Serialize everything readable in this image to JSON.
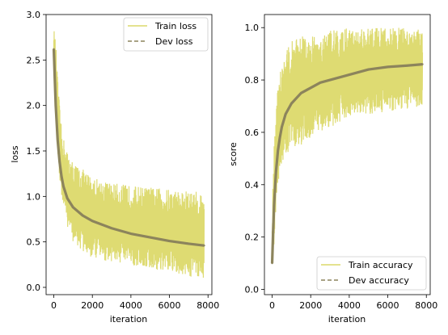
{
  "chart_data": [
    {
      "type": "line",
      "xlabel": "iteration",
      "ylabel": "loss",
      "xlim": [
        -400,
        8200
      ],
      "ylim": [
        -0.08,
        3.0
      ],
      "xticks": [
        0,
        2000,
        4000,
        6000,
        8000
      ],
      "xtick_labels": [
        "0",
        "2000",
        "4000",
        "6000",
        "8000"
      ],
      "yticks": [
        0.0,
        0.5,
        1.0,
        1.5,
        2.0,
        2.5,
        3.0
      ],
      "ytick_labels": [
        "0.0",
        "0.5",
        "1.0",
        "1.5",
        "2.0",
        "2.5",
        "3.0"
      ],
      "grid": false,
      "legend_position": "upper right",
      "series": [
        {
          "name": "Train loss",
          "style": "band",
          "color": "#dcd96a",
          "x": [
            0,
            100,
            200,
            300,
            400,
            600,
            800,
            1000,
            1500,
            2000,
            2500,
            3000,
            4000,
            5000,
            6000,
            7000,
            7800
          ],
          "low": [
            2.4,
            2.0,
            1.5,
            1.2,
            0.95,
            0.75,
            0.6,
            0.5,
            0.38,
            0.32,
            0.3,
            0.28,
            0.24,
            0.2,
            0.15,
            0.12,
            0.1
          ],
          "high": [
            2.85,
            2.7,
            2.3,
            2.0,
            1.75,
            1.55,
            1.45,
            1.38,
            1.3,
            1.22,
            1.18,
            1.15,
            1.12,
            1.1,
            1.08,
            1.06,
            1.05
          ]
        },
        {
          "name": "Dev loss",
          "style": "dashed",
          "color": "#8c845c",
          "x": [
            0,
            50,
            100,
            200,
            300,
            400,
            500,
            700,
            1000,
            1500,
            2000,
            2500,
            3000,
            4000,
            5000,
            6000,
            7000,
            7800
          ],
          "y": [
            2.62,
            2.3,
            2.0,
            1.62,
            1.38,
            1.22,
            1.11,
            0.98,
            0.88,
            0.79,
            0.73,
            0.69,
            0.65,
            0.59,
            0.55,
            0.51,
            0.48,
            0.46
          ]
        }
      ]
    },
    {
      "type": "line",
      "xlabel": "iteration",
      "ylabel": "score",
      "xlim": [
        -400,
        8200
      ],
      "ylim": [
        -0.02,
        1.05
      ],
      "xticks": [
        0,
        2000,
        4000,
        6000,
        8000
      ],
      "xtick_labels": [
        "0",
        "2000",
        "4000",
        "6000",
        "8000"
      ],
      "yticks": [
        0.0,
        0.2,
        0.4,
        0.6,
        0.8,
        1.0
      ],
      "ytick_labels": [
        "0.0",
        "0.2",
        "0.4",
        "0.6",
        "0.8",
        "1.0"
      ],
      "grid": false,
      "legend_position": "lower right",
      "series": [
        {
          "name": "Train accuracy",
          "style": "band",
          "color": "#dcd96a",
          "x": [
            0,
            100,
            200,
            300,
            400,
            600,
            800,
            1000,
            1500,
            2000,
            2500,
            3000,
            4000,
            5000,
            6000,
            7000,
            7800
          ],
          "low": [
            0.03,
            0.15,
            0.3,
            0.4,
            0.45,
            0.5,
            0.52,
            0.53,
            0.55,
            0.57,
            0.6,
            0.62,
            0.65,
            0.67,
            0.68,
            0.69,
            0.7
          ],
          "high": [
            0.3,
            0.55,
            0.7,
            0.78,
            0.83,
            0.88,
            0.92,
            0.95,
            0.97,
            0.97,
            0.98,
            0.99,
            1.0,
            1.0,
            1.0,
            1.0,
            1.0
          ]
        },
        {
          "name": "Dev accuracy",
          "style": "dashed",
          "color": "#8c845c",
          "x": [
            0,
            50,
            100,
            200,
            300,
            400,
            500,
            700,
            1000,
            1500,
            2000,
            2500,
            3000,
            4000,
            5000,
            6000,
            7000,
            7800
          ],
          "y": [
            0.1,
            0.22,
            0.32,
            0.45,
            0.53,
            0.58,
            0.62,
            0.67,
            0.71,
            0.75,
            0.77,
            0.79,
            0.8,
            0.82,
            0.84,
            0.85,
            0.855,
            0.86
          ]
        }
      ]
    }
  ]
}
